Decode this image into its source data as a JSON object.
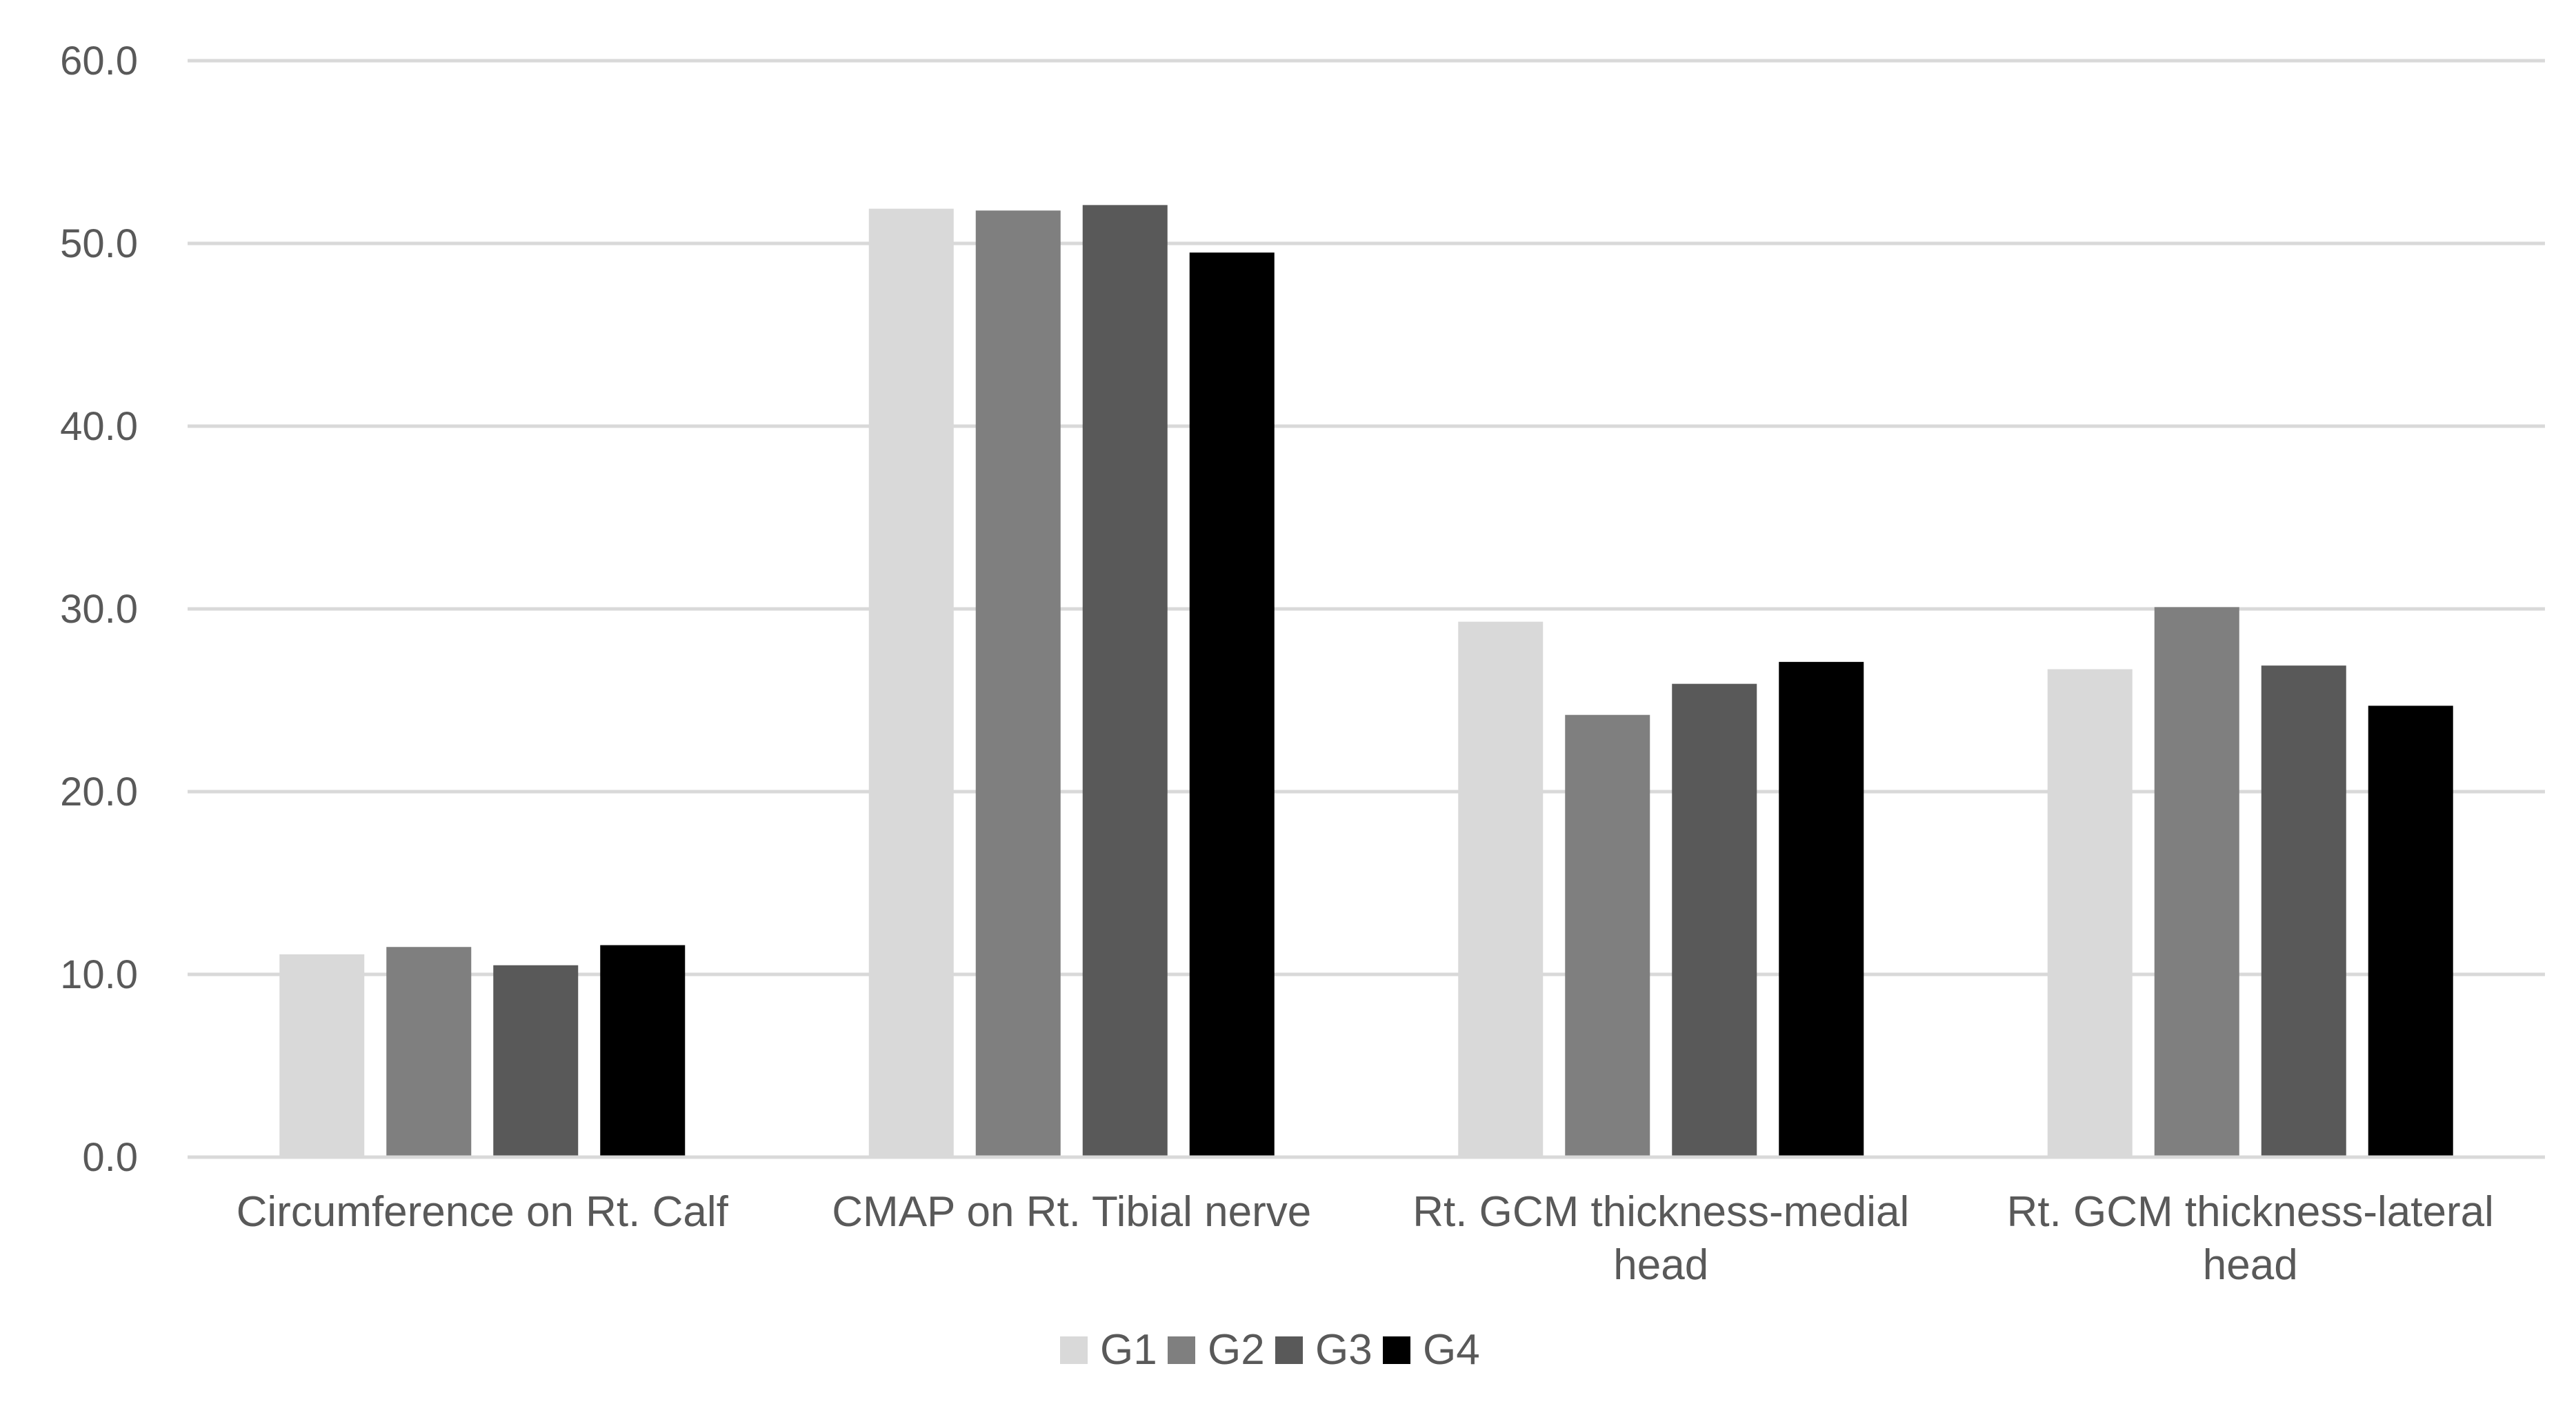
{
  "chart_data": {
    "type": "bar",
    "title": "",
    "xlabel": "",
    "ylabel": "",
    "ylim": [
      0,
      60
    ],
    "y_ticks": [
      "0.0",
      "10.0",
      "20.0",
      "30.0",
      "40.0",
      "50.0",
      "60.0"
    ],
    "grid": true,
    "legend_position": "bottom",
    "categories": [
      [
        "Circumference on Rt. Calf"
      ],
      [
        "CMAP on Rt. Tibial nerve"
      ],
      [
        "Rt. GCM thickness-medial",
        "head"
      ],
      [
        "Rt. GCM thickness-lateral",
        "head"
      ]
    ],
    "series": [
      {
        "name": "G1",
        "color": "#d9d9d9",
        "values": [
          11.1,
          51.9,
          29.3,
          26.7
        ]
      },
      {
        "name": "G2",
        "color": "#7f7f7f",
        "values": [
          11.5,
          51.8,
          24.2,
          30.1
        ]
      },
      {
        "name": "G3",
        "color": "#595959",
        "values": [
          10.5,
          52.1,
          25.9,
          26.9
        ]
      },
      {
        "name": "G4",
        "color": "#000000",
        "values": [
          11.6,
          49.5,
          27.1,
          24.7
        ]
      }
    ]
  }
}
